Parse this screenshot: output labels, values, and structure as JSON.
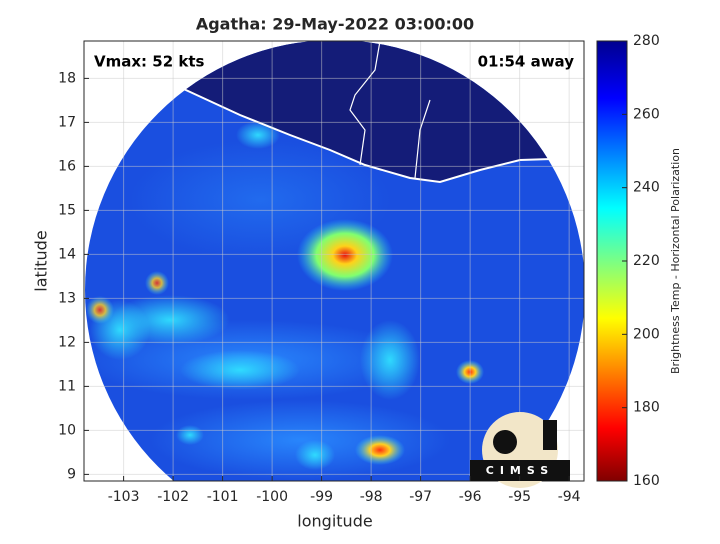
{
  "chart_data": {
    "type": "map",
    "title": "Agatha: 29-May-2022 03:00:00",
    "xlabel": "longitude",
    "ylabel": "latitude",
    "xlim": [
      -103.8,
      -93.7
    ],
    "xticks": [
      -103,
      -102,
      -101,
      -100,
      -99,
      -98,
      -97,
      -96,
      -95,
      -94
    ],
    "ylim": [
      8.85,
      18.85
    ],
    "yticks": [
      9,
      10,
      11,
      12,
      13,
      14,
      15,
      16,
      17,
      18
    ],
    "grid": true,
    "annotations": {
      "left": "Vmax: 52 kts",
      "right": "01:54 away"
    },
    "logo": "CIMSS",
    "colorbar": {
      "label": "Brightness Temp - Horizontal Polarization",
      "lim": [
        160,
        280
      ],
      "ticks": [
        160,
        180,
        200,
        220,
        240,
        260,
        280
      ]
    }
  }
}
